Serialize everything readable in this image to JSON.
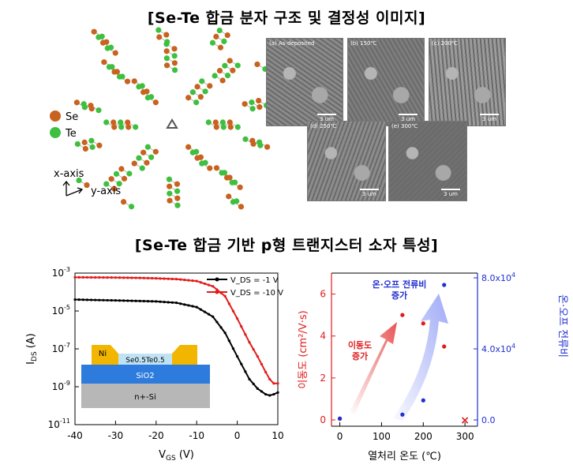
{
  "titles": {
    "top": "[Se-Te 합금 분자 구조 및 결정성 이미지]",
    "bottom": "[Se-Te 합금 기반 p형 트랜지스터 소자 특성]"
  },
  "structure": {
    "legend": [
      {
        "label": "Se",
        "color": "#c8621e"
      },
      {
        "label": "Te",
        "color": "#3fbf3f"
      }
    ],
    "axes": {
      "x": "x-axis",
      "y": "y-axis"
    }
  },
  "sem": {
    "panels": [
      {
        "label": "(a) As-deposited",
        "scale": "3 um"
      },
      {
        "label": "(b) 150℃",
        "scale": "3 um"
      },
      {
        "label": "(c) 200℃",
        "scale": "3 um"
      },
      {
        "label": "(d) 250℃",
        "scale": "3 um"
      },
      {
        "label": "(e) 300℃",
        "scale": "3 um"
      }
    ]
  },
  "chart_data": [
    {
      "type": "line",
      "xlabel": "V_GS (V)",
      "ylabel": "I_DS (A)",
      "xlim": [
        -40,
        10
      ],
      "ylim": [
        1e-11,
        0.001
      ],
      "yscale": "log",
      "xticks": [
        "-40",
        "-30",
        "-20",
        "-10",
        "0",
        "10"
      ],
      "yticks": [
        "10-3",
        "10-5",
        "10-7",
        "10-9",
        "10-11"
      ],
      "legend_position": "top-right",
      "series": [
        {
          "name": "V_DS = -1 V",
          "color": "#000000",
          "x": [
            -40,
            -35,
            -30,
            -25,
            -20,
            -15,
            -10,
            -6,
            -3,
            0,
            3,
            5,
            7,
            8,
            9,
            10
          ],
          "y": [
            4e-05,
            3.8e-05,
            3.6e-05,
            3.4e-05,
            3.2e-05,
            2.7e-05,
            1.6e-05,
            5e-06,
            7e-07,
            4e-08,
            2.5e-09,
            8e-10,
            4e-10,
            3.5e-10,
            4e-10,
            5e-10
          ]
        },
        {
          "name": "V_DS = -10 V",
          "color": "#e11b1b",
          "x": [
            -40,
            -35,
            -30,
            -25,
            -20,
            -15,
            -10,
            -6,
            -3,
            0,
            3,
            5,
            7,
            8,
            9,
            10
          ],
          "y": [
            0.0006,
            0.00059,
            0.00058,
            0.00056,
            0.00053,
            0.00048,
            0.00038,
            0.0002,
            6e-05,
            4e-06,
            2.2e-07,
            4e-08,
            6e-09,
            2.5e-09,
            1.5e-09,
            1.5e-09
          ]
        }
      ],
      "inset": {
        "layers": [
          "Ni",
          "Se0.5Te0.5",
          "SiO2",
          "n+-Si"
        ]
      }
    },
    {
      "type": "scatter",
      "xlabel": "열처리 온도 (℃)",
      "ylabel_left": "이동도 (cm²/V·s)",
      "ylabel_right": "온·오프 전류비",
      "xlim": [
        -20,
        330
      ],
      "ylim_left": [
        0,
        7
      ],
      "ylim_right": [
        0,
        80000
      ],
      "xticks": [
        "0",
        "100",
        "200",
        "300"
      ],
      "yticks_left": [
        "0",
        "2",
        "4",
        "6"
      ],
      "yticks_right": [
        "0.0",
        "4.0x10^4",
        "8.0x10^4"
      ],
      "series": [
        {
          "name": "이동도",
          "axis": "left",
          "color": "#e11b1b",
          "x": [
            0,
            150,
            200,
            250
          ],
          "y": [
            0.05,
            5.0,
            4.6,
            3.5
          ]
        },
        {
          "name": "온·오프 전류비",
          "axis": "right",
          "color": "#1f2fd0",
          "x": [
            0,
            150,
            200,
            250
          ],
          "y": [
            800,
            3000,
            11000,
            76000
          ]
        }
      ],
      "failed_point": {
        "x": 300,
        "label": "×"
      },
      "annotations": {
        "mobility_increase": "이동도\n증가",
        "ratio_increase": "온·오프 전류비\n증가"
      }
    }
  ]
}
